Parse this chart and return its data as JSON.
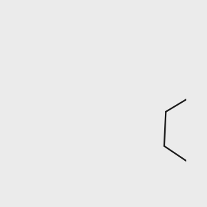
{
  "bg_color": "#ebebeb",
  "bond_color": "#1a1a1a",
  "S_color": "#cccc00",
  "N_color": "#0000cc",
  "O_color": "#cc0000",
  "H_color": "#4a8899",
  "line_width": 1.6,
  "dpi": 100
}
